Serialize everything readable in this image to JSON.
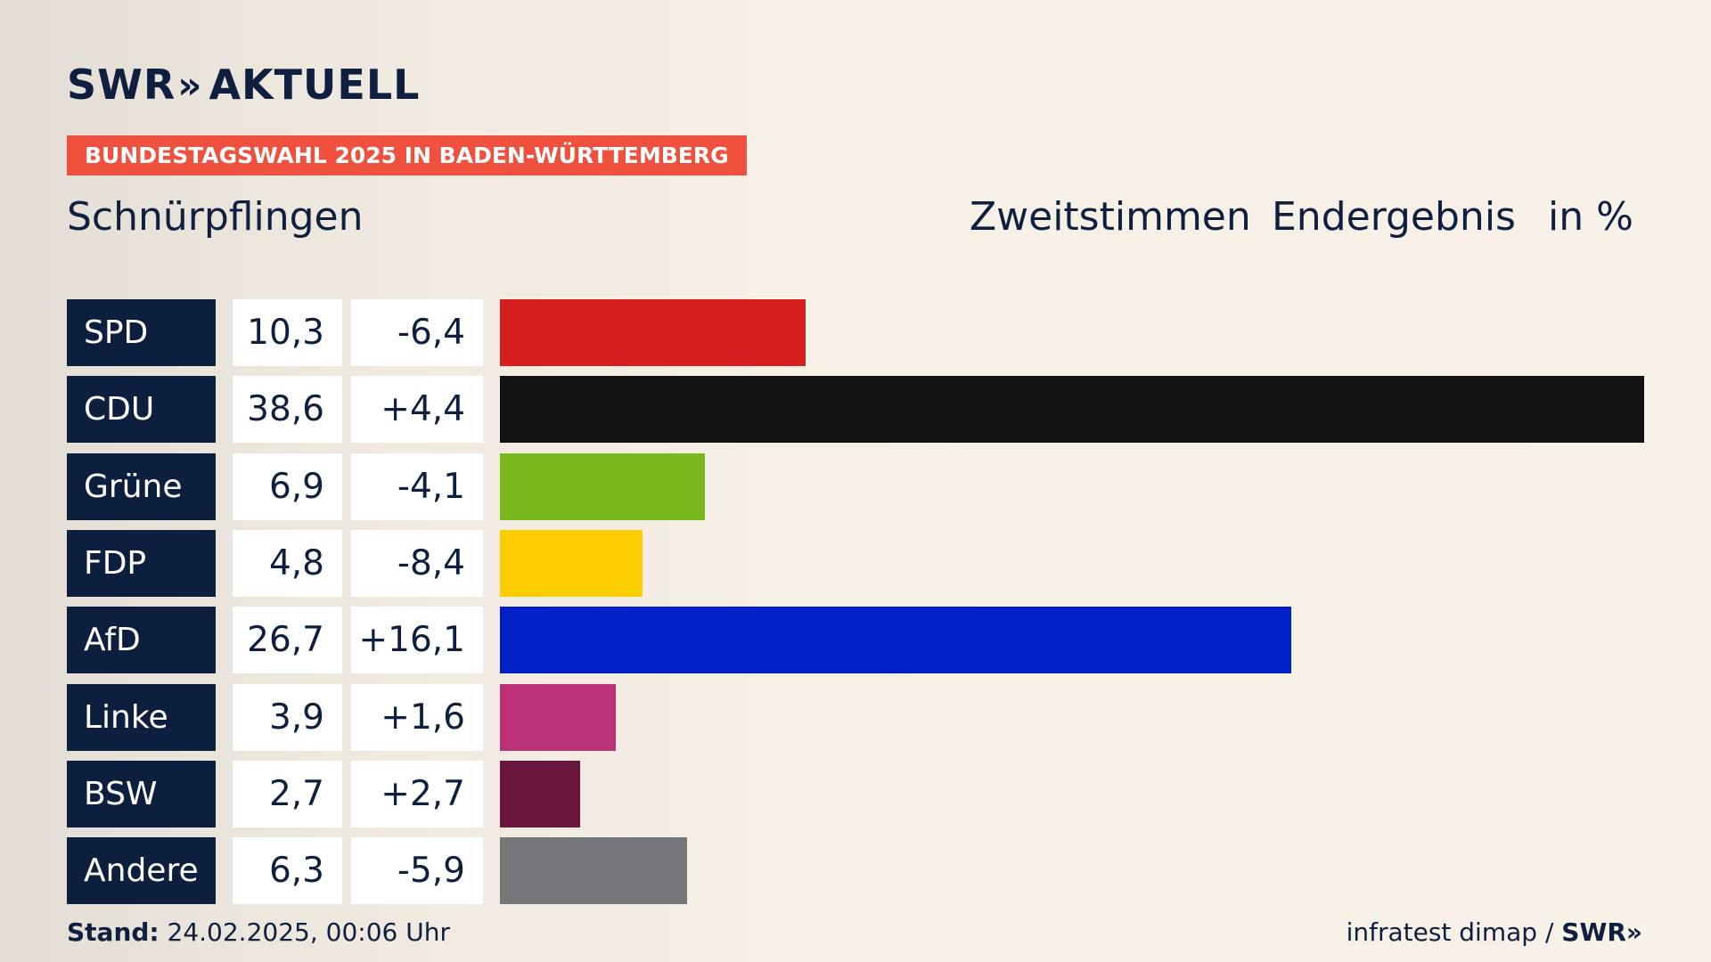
{
  "header": {
    "logo_primary": "SWR",
    "logo_chevron": "»",
    "logo_secondary": "AKTUELL",
    "banner": "BUNDESTAGSWAHL 2025 IN BADEN-WÜRTTEMBERG",
    "place": "Schnürpflingen",
    "col_votes": "Zweitstimmen",
    "col_status": "Endergebnis",
    "col_unit": "in %"
  },
  "chart_data": {
    "type": "bar",
    "orientation": "horizontal",
    "categories": [
      "SPD",
      "CDU",
      "Grüne",
      "FDP",
      "AfD",
      "Linke",
      "BSW",
      "Andere"
    ],
    "values": [
      10.3,
      38.6,
      6.9,
      4.8,
      26.7,
      3.9,
      2.7,
      6.3
    ],
    "value_labels": [
      "10,3",
      "38,6",
      "6,9",
      "4,8",
      "26,7",
      "3,9",
      "2,7",
      "6,3"
    ],
    "differences": [
      "-6,4",
      "+4,4",
      "-4,1",
      "-8,4",
      "+16,1",
      "+1,6",
      "+2,7",
      "-5,9"
    ],
    "colors": [
      "#d71f20",
      "#121212",
      "#79b91d",
      "#fdcd04",
      "#0121c6",
      "#bc3177",
      "#6a153d",
      "#757679"
    ],
    "xlim": [
      0,
      38.6
    ]
  },
  "footer": {
    "stand_label": "Stand:",
    "stand_value": " 24.02.2025, 00:06 Uhr",
    "source": "infratest dimap / ",
    "source_logo": "SWR",
    "source_chevron": "»"
  }
}
